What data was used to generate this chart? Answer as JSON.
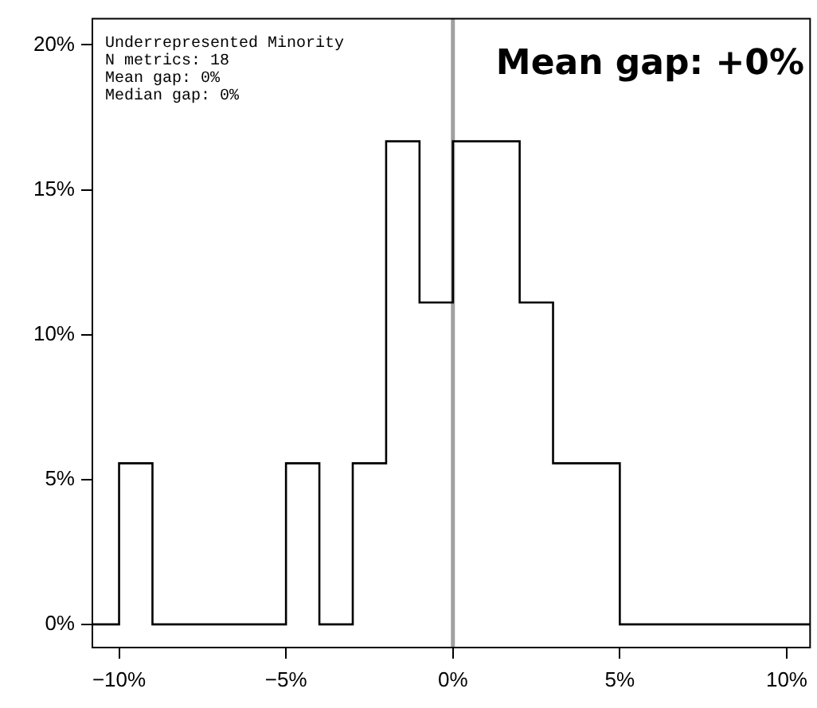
{
  "chart_data": {
    "type": "histogram",
    "title": "Mean gap: +0%",
    "annotations": [
      "Underrepresented Minority",
      "N metrics: 18",
      "Mean gap: 0%",
      "Median gap: 0%"
    ],
    "bins": [
      -10.8,
      -10,
      -9,
      -8,
      -7,
      -6,
      -5,
      -4,
      -3,
      -2,
      -1,
      0,
      1,
      2,
      3,
      4,
      5,
      10.7
    ],
    "values": [
      0,
      5.56,
      0,
      0,
      0,
      0,
      5.56,
      0,
      5.56,
      16.67,
      11.11,
      16.67,
      16.67,
      11.11,
      5.56,
      5.56,
      0
    ],
    "color": "#000000",
    "xlim": [
      -10.8,
      10.7
    ],
    "xticks": [
      {
        "value": -10,
        "label": "−10%"
      },
      {
        "value": -5,
        "label": "−5%"
      },
      {
        "value": 0,
        "label": "0%"
      },
      {
        "value": 5,
        "label": "5%"
      },
      {
        "value": 10,
        "label": "10%"
      }
    ],
    "ylim": [
      -0.8,
      20.9
    ],
    "yticks": [
      {
        "value": 0,
        "label": "0%"
      },
      {
        "value": 5,
        "label": "5%"
      },
      {
        "value": 10,
        "label": "10%"
      },
      {
        "value": 15,
        "label": "15%"
      },
      {
        "value": 20,
        "label": "20%"
      }
    ],
    "ref_lines": [
      {
        "axis": "x",
        "value": 0,
        "color": "#a0a0a0"
      }
    ],
    "grid": false,
    "legend": false
  }
}
